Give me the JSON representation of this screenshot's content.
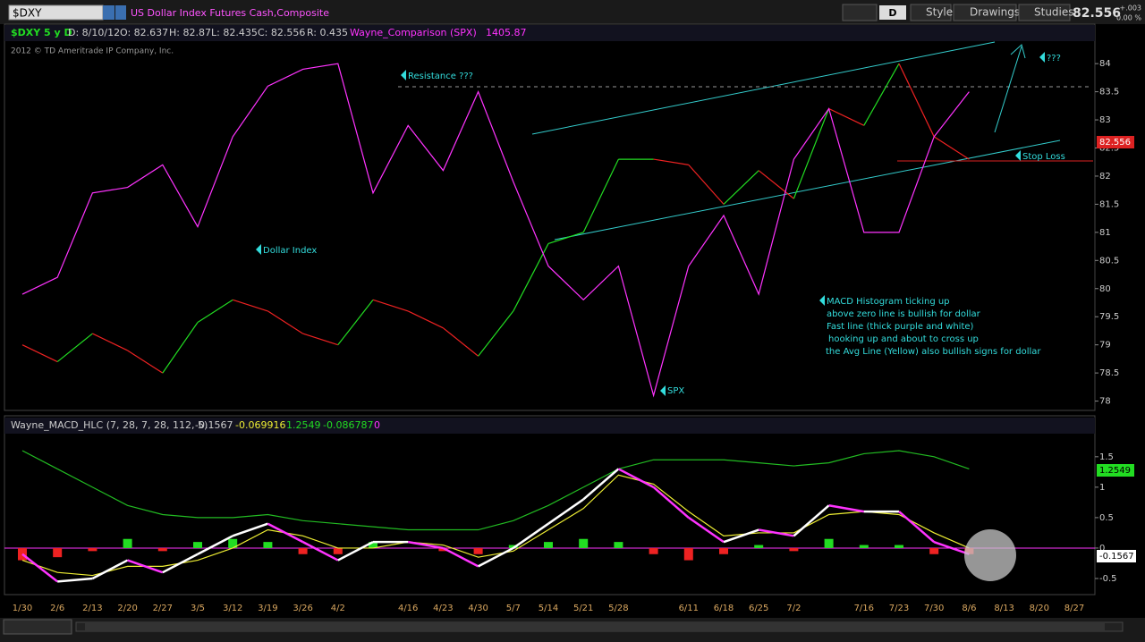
{
  "toolbar": {
    "symbol": "$DXY",
    "description": "US Dollar Index Futures Cash,Composite",
    "period": "D",
    "style": "Style",
    "drawings": "Drawings",
    "studies": "Studies",
    "last": "82.556",
    "change": "+.003",
    "change_pct": "0.00 %"
  },
  "price_header": {
    "symbol": "$DXY 5 y D",
    "date": "D: 8/10/12",
    "open": "O: 82.637",
    "high": "H: 82.87",
    "low": "L: 82.435",
    "close": "C: 82.556",
    "range": "R: 0.435",
    "comparison": "Wayne_Comparison (SPX)",
    "comparison_value": "1405.87",
    "copyright": "2012 © TD Ameritrade IP Company, Inc."
  },
  "macd_header": {
    "study": "Wayne_MACD_HLC (7, 28, 7, 28, 112, 5)",
    "v1": "-0.1567",
    "v2": "-0.069916",
    "v3": "1.2549",
    "v4": "-0.086787",
    "v5": "0"
  },
  "chart_data": [
    {
      "type": "line",
      "series": [
        {
          "name": "Dollar Index",
          "up_color": "#22dd22",
          "down_color": "#ee2222",
          "values": [
            79.0,
            78.7,
            79.2,
            78.9,
            78.5,
            79.4,
            79.8,
            79.6,
            79.2,
            79.0,
            79.8,
            79.6,
            79.3,
            78.8,
            79.6,
            80.8,
            81.0,
            82.3,
            82.3,
            82.2,
            81.5,
            82.1,
            81.6,
            83.2,
            82.9,
            84.0,
            82.7,
            82.3,
            null,
            null,
            null
          ]
        },
        {
          "name": "SPX",
          "color": "#ff33ff",
          "values": [
            79.9,
            80.2,
            81.7,
            81.8,
            82.2,
            81.1,
            82.7,
            83.6,
            83.9,
            84.0,
            81.7,
            82.9,
            82.1,
            83.5,
            81.9,
            80.4,
            79.8,
            80.4,
            78.1,
            80.4,
            81.3,
            79.9,
            82.3,
            83.2,
            81.0,
            81.0,
            82.7,
            83.5,
            null,
            null,
            null
          ]
        }
      ],
      "ylim": [
        77.85,
        84.4
      ],
      "yticks": [
        78,
        78.5,
        79,
        79.5,
        80,
        80.5,
        81,
        81.5,
        82,
        82.5,
        83,
        83.5,
        84
      ],
      "last_label": "82.556",
      "annotations": [
        "Resistance ???",
        "???",
        "Stop Loss",
        "MACD Histogram ticking up",
        "above zero line is bullish for dollar",
        "Fast line (thick purple and white)",
        "hooking up and about to cross up",
        "the Avg Line (Yellow) also bullish signs for dollar"
      ]
    },
    {
      "type": "macd",
      "categories": [
        "1/30",
        "2/6",
        "2/13",
        "2/20",
        "2/27",
        "3/5",
        "3/12",
        "3/19",
        "3/26",
        "4/2",
        null,
        "4/16",
        "4/23",
        "4/30",
        "5/7",
        "5/14",
        "5/21",
        "5/28",
        null,
        "6/11",
        "6/18",
        "6/25",
        "7/2",
        null,
        "7/16",
        "7/23",
        "7/30",
        "8/6",
        "8/13",
        "8/20",
        "8/27"
      ],
      "histogram": {
        "up_color": "#22dd22",
        "down_color": "#ee2222",
        "values": [
          -0.2,
          -0.15,
          -0.05,
          0.15,
          -0.05,
          0.1,
          0.15,
          0.1,
          -0.1,
          -0.1,
          0.1,
          0.0,
          -0.05,
          -0.1,
          0.05,
          0.1,
          0.15,
          0.1,
          -0.1,
          -0.2,
          -0.1,
          0.05,
          -0.05,
          0.15,
          0.05,
          0.05,
          -0.1,
          -0.1,
          null,
          null,
          null
        ]
      },
      "fast": {
        "up_color": "#ffffff",
        "down_color": "#ff33ff",
        "values": [
          -0.1,
          -0.55,
          -0.5,
          -0.2,
          -0.4,
          -0.1,
          0.2,
          0.4,
          0.1,
          -0.2,
          0.1,
          0.1,
          0.0,
          -0.3,
          0.0,
          0.4,
          0.8,
          1.3,
          1.0,
          0.5,
          0.1,
          0.3,
          0.2,
          0.7,
          0.6,
          0.6,
          0.1,
          -0.1,
          null,
          null,
          null
        ]
      },
      "series": [
        {
          "color": "#eeee33",
          "values": [
            -0.2,
            -0.4,
            -0.45,
            -0.3,
            -0.3,
            -0.2,
            0.0,
            0.3,
            0.2,
            0.0,
            0.0,
            0.1,
            0.05,
            -0.15,
            -0.05,
            0.3,
            0.65,
            1.2,
            1.05,
            0.6,
            0.2,
            0.25,
            0.25,
            0.55,
            0.6,
            0.55,
            0.25,
            0.0,
            null,
            null,
            null
          ]
        },
        {
          "color": "#22bb22",
          "values": [
            1.6,
            1.3,
            1.0,
            0.7,
            0.55,
            0.5,
            0.5,
            0.55,
            0.45,
            0.4,
            0.35,
            0.3,
            0.3,
            0.3,
            0.45,
            0.7,
            1.0,
            1.3,
            1.45,
            1.45,
            1.45,
            1.4,
            1.35,
            1.4,
            1.55,
            1.6,
            1.5,
            1.3,
            null,
            null,
            null
          ]
        }
      ],
      "ylim": [
        -0.75,
        1.85
      ],
      "yticks": [
        -0.5,
        0,
        0.5,
        1,
        1.5
      ],
      "labels": [
        "1.2549",
        "-0.1567"
      ]
    }
  ]
}
